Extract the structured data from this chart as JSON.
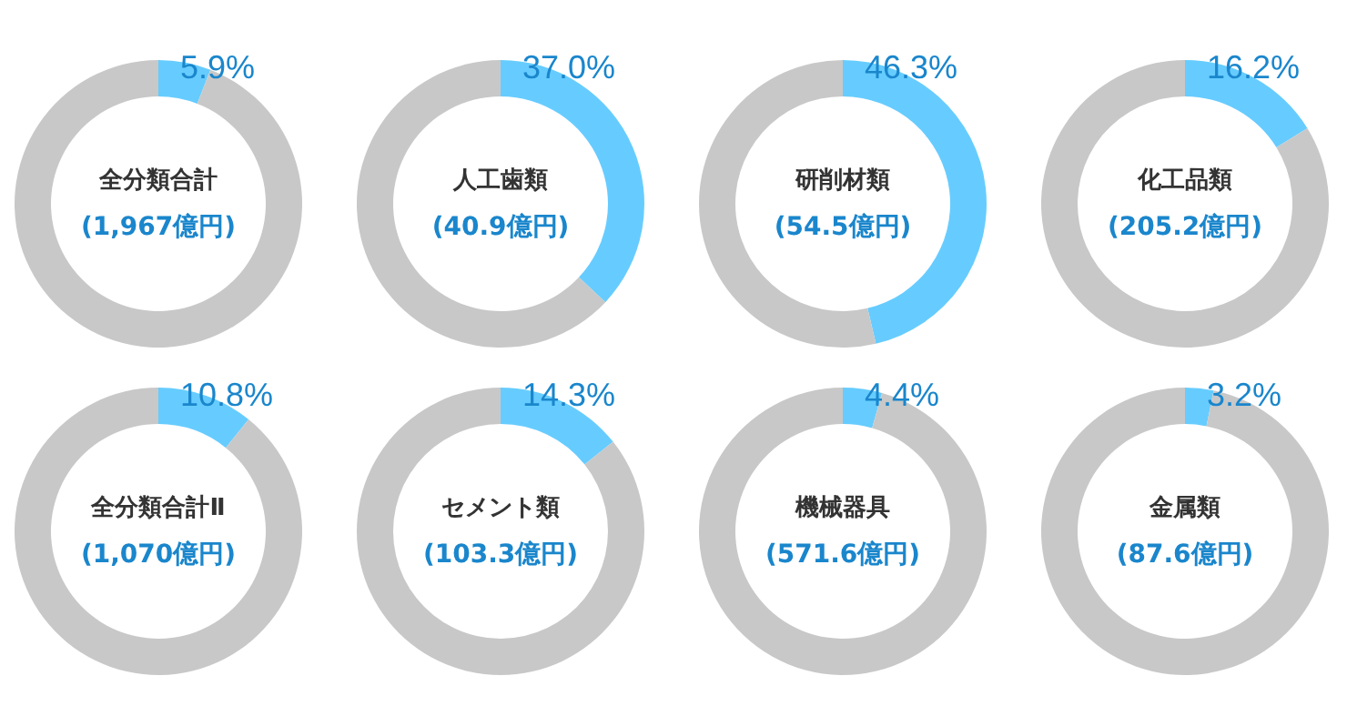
{
  "chart_data": [
    {
      "type": "donut",
      "title": "全分類合計",
      "subtitle": "(1,967億円)",
      "categories": [
        null,
        null
      ],
      "values": [
        5.9,
        94.1
      ],
      "colors": [
        "#66ccff",
        "#c8c8c8"
      ],
      "value_labels": [
        "5.9%",
        null
      ]
    },
    {
      "type": "donut",
      "title": "人工歯類",
      "subtitle": "(40.9億円)",
      "categories": [
        null,
        null
      ],
      "values": [
        37.0,
        63.0
      ],
      "colors": [
        "#66ccff",
        "#c8c8c8"
      ],
      "value_labels": [
        "37.0%",
        null
      ]
    },
    {
      "type": "donut",
      "title": "研削材類",
      "subtitle": "(54.5億円)",
      "categories": [
        null,
        null
      ],
      "values": [
        46.3,
        53.7
      ],
      "colors": [
        "#66ccff",
        "#c8c8c8"
      ],
      "value_labels": [
        "46.3%",
        null
      ]
    },
    {
      "type": "donut",
      "title": "化工品類",
      "subtitle": "(205.2億円)",
      "categories": [
        null,
        null
      ],
      "values": [
        16.2,
        83.8
      ],
      "colors": [
        "#66ccff",
        "#c8c8c8"
      ],
      "value_labels": [
        "16.2%",
        null
      ]
    },
    {
      "type": "donut",
      "title": "全分類合計Ⅱ",
      "subtitle": "(1,070億円)",
      "categories": [
        null,
        null
      ],
      "values": [
        10.8,
        89.2
      ],
      "colors": [
        "#66ccff",
        "#c8c8c8"
      ],
      "value_labels": [
        "10.8%",
        null
      ]
    },
    {
      "type": "donut",
      "title": "セメント類",
      "subtitle": "(103.3億円)",
      "categories": [
        null,
        null
      ],
      "values": [
        14.3,
        85.7
      ],
      "colors": [
        "#66ccff",
        "#c8c8c8"
      ],
      "value_labels": [
        "14.3%",
        null
      ]
    },
    {
      "type": "donut",
      "title": "機械器具",
      "subtitle": "(571.6億円)",
      "categories": [
        null,
        null
      ],
      "values": [
        4.4,
        95.6
      ],
      "colors": [
        "#66ccff",
        "#c8c8c8"
      ],
      "value_labels": [
        "4.4%",
        null
      ]
    },
    {
      "type": "donut",
      "title": "金属類",
      "subtitle": "(87.6億円)",
      "categories": [
        null,
        null
      ],
      "values": [
        3.2,
        96.8
      ],
      "colors": [
        "#66ccff",
        "#c8c8c8"
      ],
      "value_labels": [
        "3.2%",
        null
      ]
    }
  ]
}
